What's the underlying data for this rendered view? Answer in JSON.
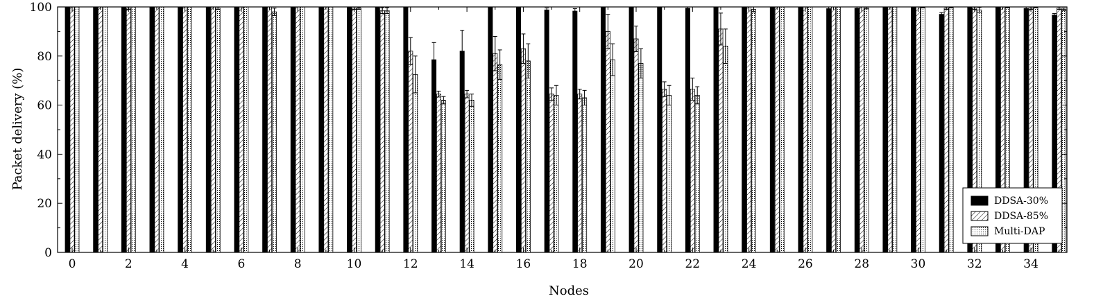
{
  "chart_data": {
    "type": "bar",
    "xlabel": "Nodes",
    "ylabel": "Packet delivery (%)",
    "ylim": [
      0,
      100
    ],
    "yticks": [
      0,
      20,
      40,
      60,
      80,
      100
    ],
    "xticks": [
      0,
      2,
      4,
      6,
      8,
      10,
      12,
      14,
      16,
      18,
      20,
      22,
      24,
      26,
      28,
      30,
      32,
      34
    ],
    "categories": [
      0,
      1,
      2,
      3,
      4,
      5,
      6,
      7,
      8,
      9,
      10,
      11,
      12,
      13,
      14,
      15,
      16,
      17,
      18,
      19,
      20,
      21,
      22,
      23,
      24,
      25,
      26,
      27,
      28,
      29,
      30,
      31,
      32,
      33,
      34,
      35
    ],
    "grid": false,
    "legend_position": "bottom-right",
    "series": [
      {
        "name": "DDSA-30%",
        "pattern": "solid",
        "color": "#000000",
        "values": [
          100,
          100,
          100,
          100,
          100,
          100,
          100,
          100,
          100,
          100,
          100,
          100,
          100,
          78.5,
          82,
          100,
          100,
          98.8,
          98.3,
          100,
          100,
          100,
          99.5,
          100,
          100,
          100,
          100,
          99.3,
          99.5,
          100,
          100,
          97,
          100,
          100,
          99.4,
          96.7
        ],
        "errors": [
          0,
          0,
          0,
          0,
          0,
          0,
          0,
          0,
          0,
          0,
          0,
          0,
          0,
          7,
          8.5,
          0,
          0,
          0.8,
          1,
          0,
          0,
          0,
          0.5,
          0,
          0,
          0,
          0,
          0.7,
          0.5,
          0,
          0,
          0.7,
          0,
          0,
          0.6,
          0.6
        ]
      },
      {
        "name": "DDSA-85%",
        "pattern": "hatch",
        "color": "#000000",
        "values": [
          100,
          100,
          99.5,
          100,
          100,
          100,
          100,
          100,
          100,
          100,
          99.5,
          98.5,
          82,
          64.5,
          64.5,
          81,
          83,
          64.5,
          64.5,
          90,
          87,
          66.5,
          66.5,
          91,
          100,
          100,
          100,
          100,
          100,
          100,
          100,
          99.5,
          99.5,
          100,
          99.5,
          99.5
        ],
        "errors": [
          0,
          0,
          0.5,
          0,
          0,
          0,
          0,
          0,
          0,
          0,
          0.5,
          1.2,
          5.5,
          1.2,
          1.5,
          7,
          6,
          2.5,
          2,
          7,
          5.2,
          3,
          4.5,
          6.5,
          0,
          0,
          0,
          0,
          0,
          0,
          0,
          0.5,
          0.5,
          0,
          0.5,
          0.5
        ]
      },
      {
        "name": "Multi-DAP",
        "pattern": "dots",
        "color": "#000000",
        "values": [
          100,
          100,
          100,
          100,
          100,
          99.5,
          100,
          98,
          100,
          100,
          99.4,
          98.5,
          72.5,
          62,
          62,
          76.5,
          78,
          64,
          63,
          78.5,
          77,
          64,
          64,
          84,
          99,
          100,
          100,
          100,
          99.6,
          100,
          99.8,
          99.8,
          98.8,
          99.8,
          99.8,
          99
        ],
        "errors": [
          0,
          0,
          0,
          0,
          0,
          0.5,
          0,
          1.5,
          0,
          0,
          0.4,
          1.2,
          7.5,
          1.5,
          2.5,
          6,
          7,
          4,
          3,
          6.5,
          6,
          4,
          3.5,
          7,
          1,
          0,
          0,
          0,
          0.4,
          0,
          0.2,
          0.2,
          1,
          0.2,
          0.2,
          0.5
        ]
      }
    ]
  }
}
